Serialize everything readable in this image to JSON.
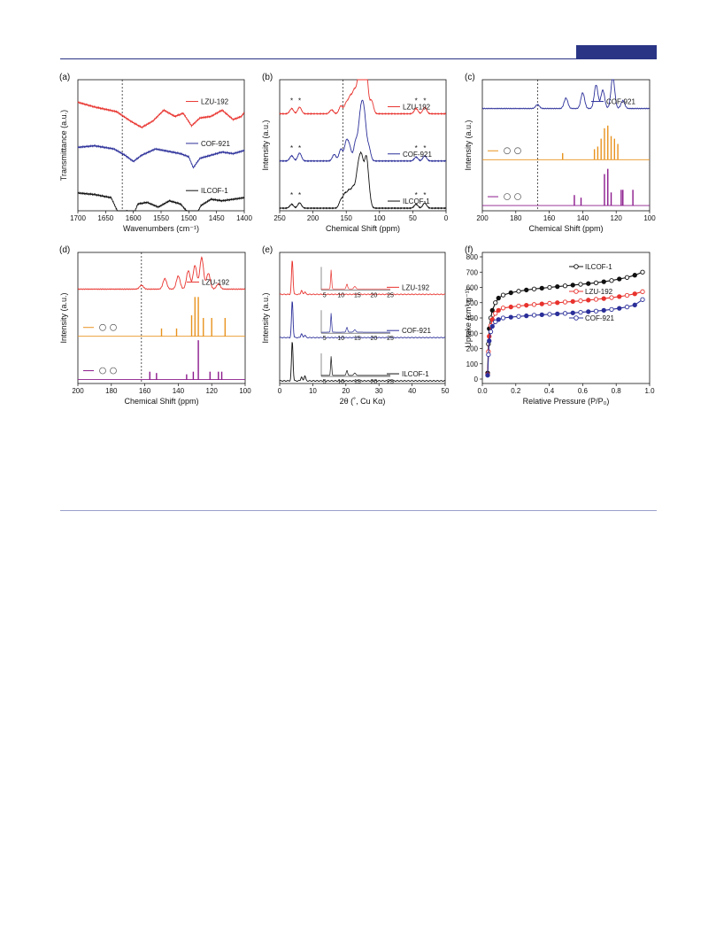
{
  "colors": {
    "red": "#e8322d",
    "blue": "#2b2f99",
    "black": "#111111",
    "orange": "#e8921e",
    "purple": "#8b1a8c",
    "header": "#2a3585"
  },
  "chart_data": [
    {
      "panel": "(a)",
      "type": "line",
      "xlabel": "Wavenumbers (cm⁻¹)",
      "ylabel": "Transmittance (a.u.)",
      "xlim": [
        1700,
        1400
      ],
      "xticks": [
        1700,
        1650,
        1600,
        1550,
        1500,
        1450,
        1400
      ],
      "dashed_x": 1620,
      "series": [
        {
          "name": "LZU-192",
          "color": "red",
          "offset": 0.78,
          "shape": [
            [
              1700,
              0.08
            ],
            [
              1670,
              0.02
            ],
            [
              1630,
              -0.04
            ],
            [
              1605,
              -0.16
            ],
            [
              1585,
              -0.24
            ],
            [
              1565,
              -0.16
            ],
            [
              1545,
              -0.02
            ],
            [
              1525,
              -0.1
            ],
            [
              1510,
              -0.06
            ],
            [
              1495,
              -0.22
            ],
            [
              1480,
              -0.12
            ],
            [
              1460,
              -0.1
            ],
            [
              1440,
              -0.02
            ],
            [
              1420,
              -0.14
            ],
            [
              1405,
              -0.1
            ],
            [
              1400,
              -0.05
            ]
          ]
        },
        {
          "name": "COF-921",
          "color": "blue",
          "offset": 0.46,
          "shape": [
            [
              1700,
              0.04
            ],
            [
              1670,
              0.06
            ],
            [
              1635,
              0.02
            ],
            [
              1615,
              -0.06
            ],
            [
              1600,
              -0.14
            ],
            [
              1585,
              -0.06
            ],
            [
              1560,
              0.02
            ],
            [
              1530,
              -0.02
            ],
            [
              1515,
              -0.04
            ],
            [
              1500,
              -0.08
            ],
            [
              1492,
              -0.22
            ],
            [
              1480,
              -0.1
            ],
            [
              1460,
              -0.06
            ],
            [
              1440,
              -0.02
            ],
            [
              1420,
              -0.04
            ],
            [
              1400,
              0.0
            ]
          ]
        },
        {
          "name": "ILCOF-1",
          "color": "black",
          "offset": 0.1,
          "shape": [
            [
              1700,
              0.06
            ],
            [
              1670,
              0.04
            ],
            [
              1640,
              0.0
            ],
            [
              1628,
              -0.18
            ],
            [
              1620,
              -0.34
            ],
            [
              1612,
              -0.16
            ],
            [
              1602,
              -0.26
            ],
            [
              1592,
              -0.08
            ],
            [
              1575,
              -0.06
            ],
            [
              1555,
              -0.12
            ],
            [
              1535,
              -0.04
            ],
            [
              1515,
              -0.08
            ],
            [
              1500,
              -0.2
            ],
            [
              1490,
              -0.26
            ],
            [
              1478,
              -0.1
            ],
            [
              1460,
              -0.02
            ],
            [
              1440,
              -0.04
            ],
            [
              1420,
              -0.02
            ],
            [
              1400,
              0.0
            ]
          ]
        }
      ]
    },
    {
      "panel": "(b)",
      "type": "line",
      "xlabel": "Chemical Shift (ppm)",
      "ylabel": "Intensity (a.u.)",
      "xlim": [
        250,
        0
      ],
      "xticks": [
        250,
        200,
        150,
        100,
        50,
        0
      ],
      "dashed_x": 155,
      "star_marks": [
        232,
        220,
        45,
        32
      ],
      "series": [
        {
          "name": "LZU-192",
          "color": "red",
          "offset": 0.74,
          "peaks": [
            [
              232,
              0.04
            ],
            [
              220,
              0.05
            ],
            [
              172,
              0.03
            ],
            [
              158,
              0.06
            ],
            [
              150,
              0.08
            ],
            [
              144,
              0.12
            ],
            [
              138,
              0.16
            ],
            [
              132,
              0.2
            ],
            [
              128,
              0.24
            ],
            [
              124,
              0.42
            ],
            [
              120,
              0.3
            ],
            [
              112,
              0.1
            ],
            [
              45,
              0.04
            ],
            [
              32,
              0.05
            ]
          ]
        },
        {
          "name": "COF-921",
          "color": "blue",
          "offset": 0.38,
          "peaks": [
            [
              232,
              0.04
            ],
            [
              220,
              0.06
            ],
            [
              168,
              0.05
            ],
            [
              158,
              0.09
            ],
            [
              150,
              0.14
            ],
            [
              145,
              0.1
            ],
            [
              136,
              0.14
            ],
            [
              130,
              0.22
            ],
            [
              126,
              0.3
            ],
            [
              122,
              0.24
            ],
            [
              116,
              0.1
            ],
            [
              45,
              0.03
            ],
            [
              32,
              0.04
            ]
          ]
        },
        {
          "name": "ILCOF-1",
          "color": "black",
          "offset": 0.02,
          "peaks": [
            [
              232,
              0.03
            ],
            [
              220,
              0.04
            ],
            [
              158,
              0.06
            ],
            [
              152,
              0.1
            ],
            [
              146,
              0.12
            ],
            [
              140,
              0.14
            ],
            [
              134,
              0.18
            ],
            [
              130,
              0.24
            ],
            [
              126,
              0.28
            ],
            [
              120,
              0.34
            ],
            [
              116,
              0.1
            ],
            [
              45,
              0.03
            ],
            [
              32,
              0.04
            ]
          ]
        }
      ]
    },
    {
      "panel": "(c)",
      "type": "line",
      "xlabel": "Chemical Shift (ppm)",
      "ylabel": "Intensity (a.u.)",
      "xlim": [
        200,
        100
      ],
      "xticks": [
        200,
        180,
        160,
        140,
        120,
        100
      ],
      "dashed_x": 167,
      "series": [
        {
          "name": "COF-921",
          "color": "blue",
          "offset": 0.78,
          "peaks": [
            [
              167,
              0.03
            ],
            [
              150,
              0.08
            ],
            [
              140,
              0.12
            ],
            [
              132,
              0.18
            ],
            [
              128,
              0.14
            ],
            [
              122,
              0.24
            ],
            [
              116,
              0.06
            ]
          ]
        }
      ],
      "sticks": [
        {
          "color": "orange",
          "base": 0.39,
          "lines": [
            [
              152,
              0.05
            ],
            [
              133,
              0.08
            ],
            [
              131,
              0.1
            ],
            [
              129,
              0.16
            ],
            [
              127,
              0.24
            ],
            [
              125,
              0.26
            ],
            [
              123,
              0.18
            ],
            [
              121,
              0.16
            ],
            [
              119,
              0.12
            ]
          ]
        },
        {
          "color": "purple",
          "base": 0.04,
          "lines": [
            [
              145,
              0.08
            ],
            [
              141,
              0.06
            ],
            [
              127,
              0.24
            ],
            [
              125,
              0.28
            ],
            [
              123,
              0.1
            ],
            [
              117,
              0.12
            ],
            [
              116,
              0.12
            ],
            [
              110,
              0.12
            ]
          ]
        }
      ]
    },
    {
      "panel": "(d)",
      "type": "line",
      "xlabel": "Chemical Shift (ppm)",
      "ylabel": "Intensity (a.u.)",
      "xlim": [
        200,
        100
      ],
      "xticks": [
        200,
        180,
        160,
        140,
        120,
        100
      ],
      "dashed_x": 162,
      "series": [
        {
          "name": "LZU-192",
          "color": "red",
          "offset": 0.72,
          "peaks": [
            [
              162,
              0.03
            ],
            [
              148,
              0.08
            ],
            [
              140,
              0.1
            ],
            [
              134,
              0.14
            ],
            [
              130,
              0.18
            ],
            [
              126,
              0.24
            ],
            [
              122,
              0.12
            ],
            [
              116,
              0.04
            ]
          ]
        }
      ],
      "sticks": [
        {
          "color": "orange",
          "base": 0.36,
          "lines": [
            [
              150,
              0.06
            ],
            [
              141,
              0.06
            ],
            [
              132,
              0.16
            ],
            [
              130,
              0.3
            ],
            [
              128,
              0.3
            ],
            [
              125,
              0.14
            ],
            [
              120,
              0.14
            ],
            [
              112,
              0.14
            ]
          ]
        },
        {
          "color": "purple",
          "base": 0.03,
          "lines": [
            [
              157,
              0.06
            ],
            [
              153,
              0.05
            ],
            [
              135,
              0.04
            ],
            [
              131,
              0.06
            ],
            [
              128,
              0.3
            ],
            [
              121,
              0.06
            ],
            [
              116,
              0.06
            ],
            [
              114,
              0.06
            ]
          ]
        }
      ]
    },
    {
      "panel": "(e)",
      "type": "line",
      "xlabel": "2θ (˚, Cu Kα)",
      "ylabel": "Intensity (a.u.)",
      "xlim": [
        0,
        50
      ],
      "xticks": [
        0,
        10,
        20,
        30,
        40,
        50
      ],
      "inset_xticks": [
        5,
        10,
        15,
        20,
        25
      ],
      "series": [
        {
          "name": "LZU-192",
          "color": "red",
          "offset": 0.68,
          "peaks": [
            [
              3.8,
              0.26
            ],
            [
              6.6,
              0.03
            ],
            [
              7.6,
              0.02
            ]
          ]
        },
        {
          "name": "COF-921",
          "color": "blue",
          "offset": 0.35,
          "peaks": [
            [
              3.8,
              0.28
            ],
            [
              6.6,
              0.03
            ],
            [
              7.6,
              0.02
            ]
          ]
        },
        {
          "name": "ILCOF-1",
          "color": "black",
          "offset": 0.02,
          "peaks": [
            [
              3.8,
              0.3
            ],
            [
              6.6,
              0.03
            ],
            [
              7.6,
              0.04
            ]
          ]
        }
      ]
    },
    {
      "panel": "(f)",
      "type": "scatter",
      "xlabel": "Relative Pressure (P/P₀)",
      "ylabel": "Uptake (cm³ g⁻¹)",
      "xlim": [
        0,
        1.0
      ],
      "ylim": [
        0,
        800
      ],
      "xticks": [
        "0.0",
        "0.2",
        "0.4",
        "0.6",
        "0.8",
        "1.0"
      ],
      "yticks": [
        0,
        100,
        200,
        300,
        400,
        500,
        600,
        700,
        800
      ],
      "series": [
        {
          "name": "ILCOF-1",
          "color": "black",
          "x": [
            0.0,
            0.005,
            0.01,
            0.02,
            0.03,
            0.05,
            0.07,
            0.1,
            0.15,
            0.2,
            0.25,
            0.3,
            0.35,
            0.4,
            0.45,
            0.5,
            0.55,
            0.6,
            0.65,
            0.7,
            0.75,
            0.8,
            0.85,
            0.9,
            0.95,
            1.0
          ],
          "y": [
            40,
            230,
            330,
            400,
            450,
            500,
            530,
            550,
            565,
            575,
            583,
            590,
            595,
            600,
            605,
            610,
            615,
            620,
            625,
            630,
            637,
            645,
            655,
            665,
            680,
            700
          ]
        },
        {
          "name": "LZU-192",
          "color": "red",
          "x": [
            0.0,
            0.005,
            0.01,
            0.02,
            0.03,
            0.05,
            0.07,
            0.1,
            0.15,
            0.2,
            0.25,
            0.3,
            0.35,
            0.4,
            0.45,
            0.5,
            0.55,
            0.6,
            0.65,
            0.7,
            0.75,
            0.8,
            0.85,
            0.9,
            0.95,
            1.0
          ],
          "y": [
            30,
            180,
            280,
            350,
            390,
            430,
            450,
            465,
            472,
            478,
            483,
            488,
            492,
            496,
            500,
            504,
            508,
            512,
            517,
            522,
            527,
            533,
            540,
            548,
            558,
            572
          ]
        },
        {
          "name": "COF-921",
          "color": "blue",
          "x": [
            0.0,
            0.005,
            0.01,
            0.02,
            0.03,
            0.05,
            0.07,
            0.1,
            0.15,
            0.2,
            0.25,
            0.3,
            0.35,
            0.4,
            0.45,
            0.5,
            0.55,
            0.6,
            0.65,
            0.7,
            0.75,
            0.8,
            0.85,
            0.9,
            0.95,
            1.0
          ],
          "y": [
            25,
            160,
            250,
            310,
            345,
            375,
            390,
            400,
            405,
            410,
            414,
            418,
            421,
            424,
            427,
            430,
            433,
            437,
            441,
            445,
            450,
            456,
            463,
            472,
            485,
            520
          ]
        }
      ]
    }
  ]
}
